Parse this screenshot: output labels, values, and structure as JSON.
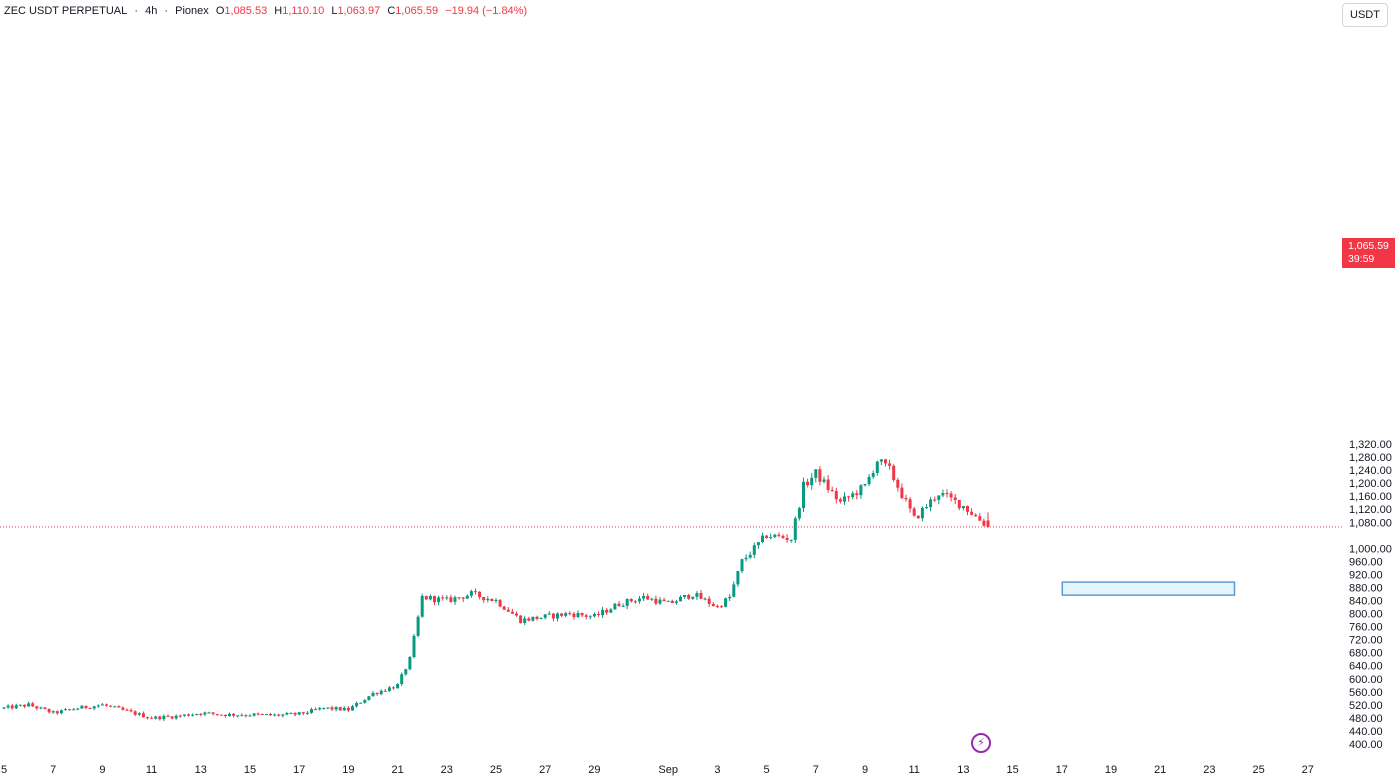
{
  "header": {
    "symbol": "ZEC USDT PERPETUAL",
    "interval": "4h",
    "exchange": "Pionex",
    "o_label": "O",
    "o_value": "1,085.53",
    "h_label": "H",
    "h_value": "1,110.10",
    "l_label": "L",
    "l_value": "1,063.97",
    "c_label": "C",
    "c_value": "1,065.59",
    "change": "−19.94 (−1.84%)"
  },
  "currency": "USDT",
  "last_price": {
    "value": "1,065.59",
    "countdown": "39:59"
  },
  "colors": {
    "up": "#089981",
    "down": "#f23645",
    "box_fill": "#e3f4fb",
    "box_stroke": "#5b9bd5",
    "icon": "#9c27b0"
  },
  "icons": {
    "flash": "lightning-bolt-icon"
  },
  "chart_data": {
    "type": "candlestick",
    "x_tick_labels": [
      "5",
      "7",
      "9",
      "11",
      "13",
      "15",
      "17",
      "19",
      "21",
      "23",
      "25",
      "27",
      "29",
      "Sep",
      "3",
      "5",
      "7",
      "9",
      "11",
      "13",
      "15",
      "17",
      "19",
      "21",
      "23",
      "25",
      "27"
    ],
    "y_tick_labels": [
      "1,320.00",
      "1,280.00",
      "1,240.00",
      "1,200.00",
      "1,160.00",
      "1,120.00",
      "1,080.00",
      "1,000.00",
      "960.00",
      "920.00",
      "880.00",
      "840.00",
      "800.00",
      "760.00",
      "720.00",
      "680.00",
      "640.00",
      "600.00",
      "560.00",
      "520.00",
      "480.00",
      "440.00",
      "400.00"
    ],
    "y_ticks": [
      1320,
      1280,
      1240,
      1200,
      1160,
      1120,
      1080,
      1000,
      960,
      920,
      880,
      840,
      800,
      760,
      720,
      680,
      640,
      600,
      560,
      520,
      480,
      440,
      400
    ],
    "ylim": [
      400,
      1320
    ],
    "last_price": 1065.59,
    "highlight_zone": {
      "price_low": 858,
      "price_high": 898,
      "date_start": "Sep 17",
      "date_end": "Sep 24"
    },
    "anchors": [
      [
        "Aug 5",
        510
      ],
      [
        "Aug 6",
        520
      ],
      [
        "Aug 7",
        495
      ],
      [
        "Aug 8",
        510
      ],
      [
        "Aug 9",
        520
      ],
      [
        "Aug 10",
        500
      ],
      [
        "Aug 11",
        480
      ],
      [
        "Aug 12",
        485
      ],
      [
        "Aug 13",
        495
      ],
      [
        "Aug 14",
        490
      ],
      [
        "Aug 15",
        490
      ],
      [
        "Aug 16",
        488
      ],
      [
        "Aug 17",
        492
      ],
      [
        "Aug 18",
        510
      ],
      [
        "Aug 19",
        505
      ],
      [
        "Aug 20",
        555
      ],
      [
        "Aug 21",
        580
      ],
      [
        "Aug 21.5",
        660
      ],
      [
        "Aug 22",
        850
      ],
      [
        "Aug 23",
        840
      ],
      [
        "Aug 24",
        860
      ],
      [
        "Aug 25",
        840
      ],
      [
        "Aug 26",
        780
      ],
      [
        "Aug 27",
        790
      ],
      [
        "Aug 28",
        800
      ],
      [
        "Aug 29",
        790
      ],
      [
        "Aug 30",
        830
      ],
      [
        "Aug 31",
        850
      ],
      [
        "Sep 1",
        830
      ],
      [
        "Sep 2",
        860
      ],
      [
        "Sep 3",
        820
      ],
      [
        "Sep 3.5",
        850
      ],
      [
        "Sep 4",
        960
      ],
      [
        "Sep 5",
        1040
      ],
      [
        "Sep 6",
        1030
      ],
      [
        "Sep 6.5",
        1190
      ],
      [
        "Sep 7",
        1230
      ],
      [
        "Sep 8",
        1140
      ],
      [
        "Sep 9",
        1190
      ],
      [
        "Sep 9.5",
        1270
      ],
      [
        "Sep 10",
        1240
      ],
      [
        "Sep 11",
        1090
      ],
      [
        "Sep 12",
        1170
      ],
      [
        "Sep 13",
        1130
      ],
      [
        "Sep 14",
        1066
      ]
    ]
  }
}
